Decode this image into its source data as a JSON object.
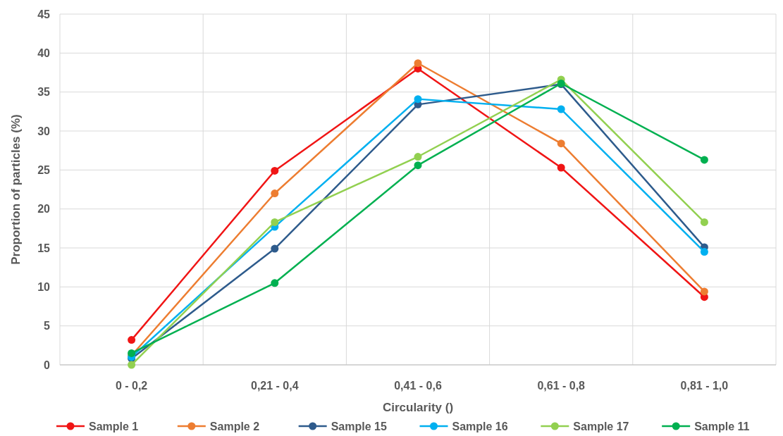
{
  "chart_data": {
    "type": "line",
    "xlabel": "Circularity ()",
    "ylabel": "Proportion of particles (%)",
    "categories": [
      "0 - 0,2",
      "0,21 - 0,4",
      "0,41 - 0,6",
      "0,61 - 0,8",
      "0,81 - 1,0"
    ],
    "series": [
      {
        "name": "Sample 1",
        "color": "#f01515",
        "values": [
          3.2,
          24.9,
          38,
          25.3,
          8.7
        ]
      },
      {
        "name": "Sample 2",
        "color": "#ed7d31",
        "values": [
          1.2,
          22,
          38.7,
          28.4,
          9.4
        ]
      },
      {
        "name": "Sample 15",
        "color": "#2e5b8c",
        "values": [
          0.8,
          14.9,
          33.4,
          36,
          15.1
        ]
      },
      {
        "name": "Sample 16",
        "color": "#00b0f0",
        "values": [
          1,
          17.7,
          34.1,
          32.8,
          14.5
        ]
      },
      {
        "name": "Sample 17",
        "color": "#92d050",
        "values": [
          0,
          18.3,
          26.7,
          36.6,
          18.3
        ]
      },
      {
        "name": "Sample 11",
        "color": "#00b050",
        "values": [
          1.5,
          10.5,
          25.6,
          36.1,
          26.3
        ]
      }
    ],
    "ylim": [
      0,
      45
    ],
    "yticks": [
      0,
      5,
      10,
      15,
      20,
      25,
      30,
      35,
      40,
      45
    ],
    "grid": true,
    "legend": "bottom",
    "marker": "circle",
    "line_style": "solid"
  }
}
